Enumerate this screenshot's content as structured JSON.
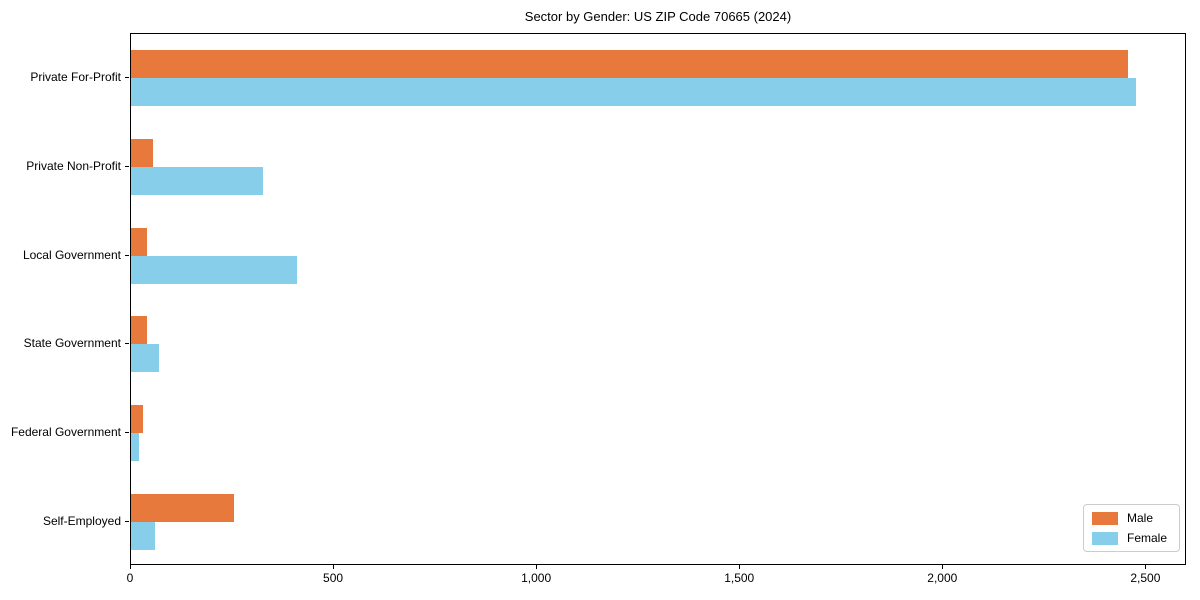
{
  "chart_data": {
    "type": "bar",
    "orientation": "horizontal",
    "title": "Sector by Gender: US ZIP Code 70665 (2024)",
    "categories": [
      "Private For-Profit",
      "Private Non-Profit",
      "Local Government",
      "State Government",
      "Federal Government",
      "Self-Employed"
    ],
    "series": [
      {
        "name": "Male",
        "color": "#e8793c",
        "values": [
          2460,
          55,
          40,
          40,
          30,
          255
        ]
      },
      {
        "name": "Female",
        "color": "#87ceeb",
        "values": [
          2480,
          325,
          410,
          70,
          20,
          60
        ]
      }
    ],
    "xlabel": "",
    "ylabel": "",
    "xlim": [
      0,
      2600
    ],
    "xticks": [
      0,
      500,
      1000,
      1500,
      2000,
      2500
    ],
    "xticklabels": [
      "0",
      "500",
      "1,000",
      "1,500",
      "2,000",
      "2,500"
    ],
    "grid": false,
    "background_color": "#ffffff",
    "axis_color": "#000000",
    "legend": {
      "position": "lower-right",
      "border_color": "#cccccc",
      "items": [
        {
          "label": "Male",
          "color": "#e8793c"
        },
        {
          "label": "Female",
          "color": "#87ceeb"
        }
      ]
    }
  }
}
